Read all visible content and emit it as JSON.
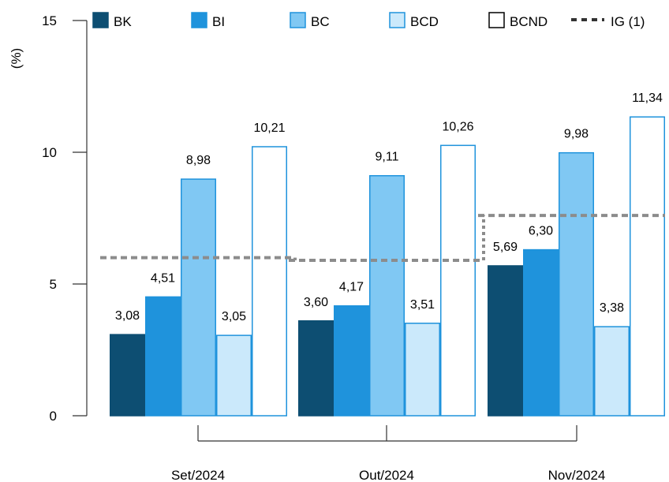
{
  "chart_data": {
    "type": "bar",
    "ylabel": "(%)",
    "ylim": [
      0,
      15
    ],
    "yticks": [
      0,
      5,
      10,
      15
    ],
    "categories": [
      "Set/2024",
      "Out/2024",
      "Nov/2024"
    ],
    "series": [
      {
        "name": "BK",
        "color": "#0d4e72",
        "border": "#0d4e72",
        "values": [
          3.08,
          3.6,
          5.69
        ],
        "labels": [
          "3,08",
          "3,60",
          "5,69"
        ]
      },
      {
        "name": "BI",
        "color": "#1f93dc",
        "border": "#1f93dc",
        "values": [
          4.51,
          4.17,
          6.3
        ],
        "labels": [
          "4,51",
          "4,17",
          "6,30"
        ]
      },
      {
        "name": "BC",
        "color": "#80c8f3",
        "border": "#1f93dc",
        "values": [
          8.98,
          9.11,
          9.98
        ],
        "labels": [
          "8,98",
          "9,11",
          "9,98"
        ]
      },
      {
        "name": "BCD",
        "color": "#cbe9fb",
        "border": "#1f93dc",
        "values": [
          3.05,
          3.51,
          3.38
        ],
        "labels": [
          "3,05",
          "3,51",
          "3,38"
        ]
      },
      {
        "name": "BCND",
        "color": "#ffffff",
        "border": "#1f93dc",
        "values": [
          10.21,
          10.26,
          11.34
        ],
        "labels": [
          "10,21",
          "10,26",
          "11,34"
        ]
      }
    ],
    "reference_line": {
      "name": "IG (1)",
      "color": "#8c8c8c",
      "style": "dashed",
      "values": [
        6.0,
        5.9,
        7.6
      ]
    },
    "grid": false,
    "legend_position": "top"
  }
}
